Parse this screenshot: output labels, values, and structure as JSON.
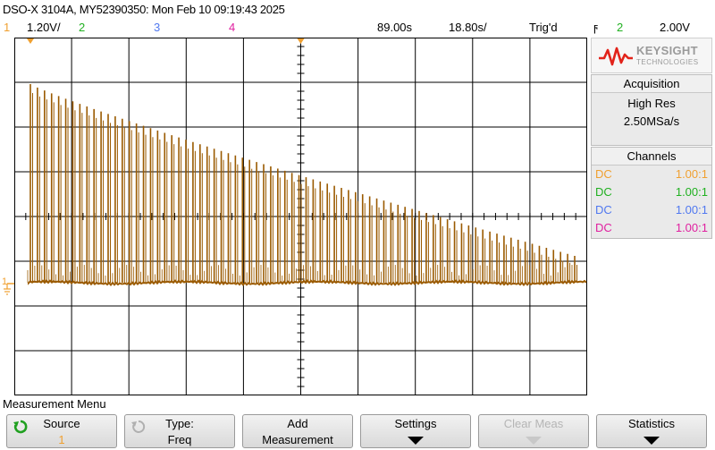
{
  "header": {
    "title": "DSO-X 3104A, MY52390350: Mon Feb 10 09:19:43 2025"
  },
  "status": {
    "ch1_num": "1",
    "ch1_scale": "1.20V/",
    "ch2_num": "2",
    "ch3_num": "3",
    "ch4_num": "4",
    "time_pos": "89.00s",
    "time_scale": "18.80s/",
    "trig_state": "Trig'd",
    "trig_icon": "ϝ",
    "trig_source": "2",
    "trig_level": "2.00V"
  },
  "panel": {
    "brand": "KEYSIGHT",
    "brand_sub": "TECHNOLOGIES",
    "acquisition_title": "Acquisition",
    "acq_mode": "High Res",
    "sample_rate": "2.50MSa/s",
    "channels_title": "Channels",
    "channels": [
      {
        "coupling": "DC",
        "ratio": "1.00:1",
        "color": "#f0a030"
      },
      {
        "coupling": "DC",
        "ratio": "1.00:1",
        "color": "#20b020"
      },
      {
        "coupling": "DC",
        "ratio": "1.00:1",
        "color": "#5078f0"
      },
      {
        "coupling": "DC",
        "ratio": "1.00:1",
        "color": "#e020a0"
      }
    ]
  },
  "menu": {
    "title": "Measurement Menu",
    "source_label": "Source",
    "source_value": "1",
    "type_label": "Type:",
    "type_value": "Freq",
    "add_label_1": "Add",
    "add_label_2": "Measurement",
    "settings_label": "Settings",
    "clear_label": "Clear Meas",
    "statistics_label": "Statistics"
  },
  "scope": {
    "ground_marker": "1",
    "trace_color": "#9a5a00"
  },
  "colors": {
    "ch1": "#f0a030",
    "ch2": "#20b020",
    "ch3": "#5078f0",
    "ch4": "#e020a0"
  }
}
